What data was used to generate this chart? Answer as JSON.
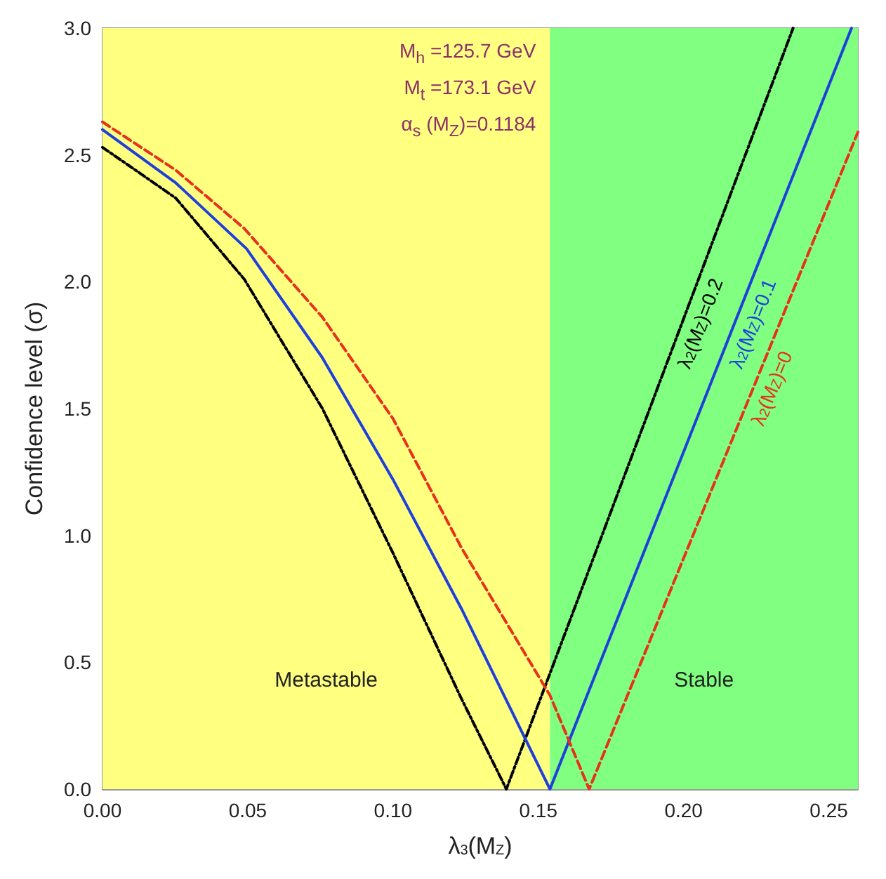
{
  "chart_data": {
    "type": "line",
    "xlabel": "λ$_{3}$(M$_{Z}$)",
    "ylabel": "Confidence level (σ)",
    "xlim": [
      0,
      0.26
    ],
    "xticks": [
      {
        "value": 0,
        "label": "0.00"
      },
      0.05,
      {
        "value": 0.1,
        "label": "0.10"
      },
      0.15,
      {
        "value": 0.2,
        "label": "0.20"
      },
      0.25
    ],
    "ylim": [
      0,
      3
    ],
    "yticks": [
      {
        "value": 0,
        "label": "0.0"
      },
      0.5,
      {
        "value": 1,
        "label": "1.0"
      },
      1.5,
      {
        "value": 2,
        "label": "2.0"
      },
      2.5,
      {
        "value": 3,
        "label": "3.0"
      }
    ],
    "grid": false,
    "legend": false,
    "marker": "none",
    "bands": [
      {
        "axis": "x",
        "from": 0,
        "to": 0.154,
        "label": "Metastable",
        "color": "#ffff80"
      },
      {
        "axis": "x",
        "from": 0.154,
        "to": 0.26,
        "label": "Stable",
        "color": "#80ff80"
      }
    ],
    "annotations": [
      "M$_{h}$ =125.7 GeV",
      "M$_{t}$ =173.1 GeV",
      "α$_{s}$ (M$_{Z}$)=0.1184"
    ],
    "series": [
      {
        "name": "λ$_{2}$(M$_{Z}$)=0.2",
        "color": "#000000",
        "line_style": "dotted",
        "x": [
          0,
          0.0252,
          0.0488,
          0.0757,
          0.1,
          0.1236,
          0.139,
          0.2377
        ],
        "values": [
          2.53,
          2.33,
          2.01,
          1.5,
          0.93,
          0.355,
          0,
          3.0
        ]
      },
      {
        "name": "λ$_{2}$(M$_{Z}$)=0.1",
        "color": "#1f3fdd",
        "line_style": "solid",
        "x": [
          0,
          0.0252,
          0.0496,
          0.0757,
          0.1,
          0.1236,
          0.154,
          0.2578
        ],
        "values": [
          2.6,
          2.39,
          2.13,
          1.7,
          1.22,
          0.71,
          0,
          3.0
        ]
      },
      {
        "name": "λ$_{2}$(M$_{Z}$)=0",
        "color": "#e8301c",
        "line_style": "dashed",
        "x": [
          0,
          0.0252,
          0.0488,
          0.0757,
          0.1,
          0.1236,
          0.154,
          0.1675,
          0.26
        ],
        "values": [
          2.63,
          2.44,
          2.21,
          1.86,
          1.46,
          0.95,
          0.37,
          0,
          2.59
        ]
      }
    ]
  }
}
